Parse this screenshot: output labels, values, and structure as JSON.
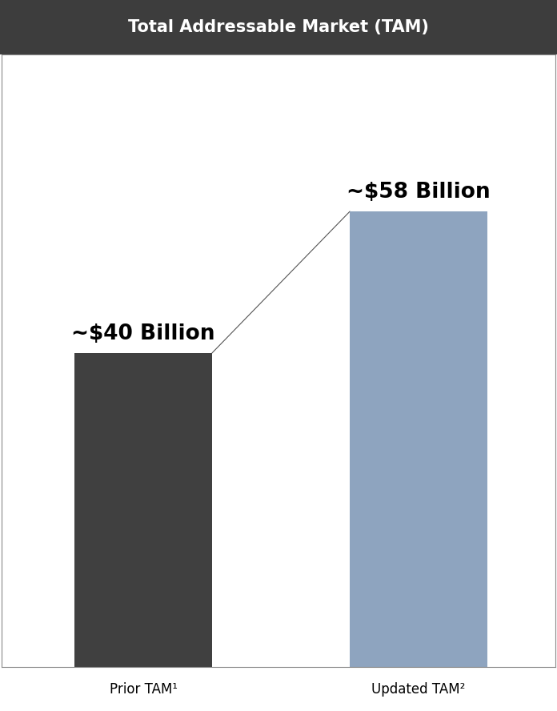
{
  "chart_data": {
    "type": "bar",
    "title": "Total Addressable Market (TAM)",
    "categories": [
      "Prior TAM¹",
      "Updated TAM²"
    ],
    "values": [
      40,
      58
    ],
    "value_labels": [
      "~$40 Billion",
      "~$58 Billion"
    ],
    "colors": [
      "#404040",
      "#8ea4bf"
    ],
    "ylim": [
      0,
      78
    ],
    "data_labels": true,
    "tick_labels": "x"
  }
}
